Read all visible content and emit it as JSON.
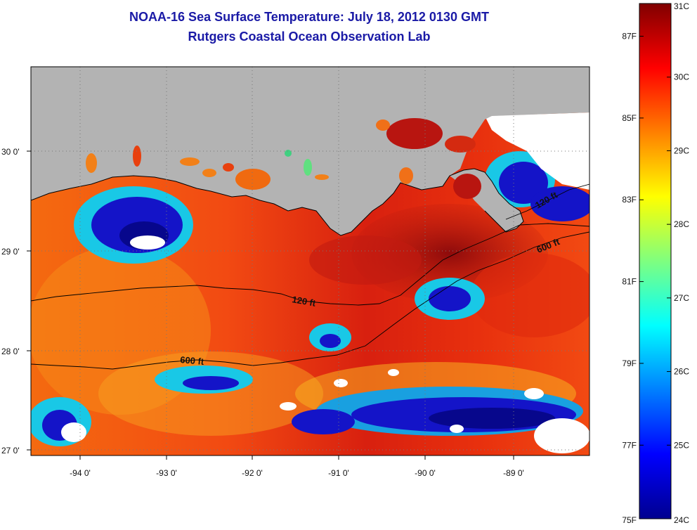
{
  "title": "NOAA-16 Sea Surface Temperature:  July 18, 2012 0130 GMT",
  "subtitle": "Rutgers Coastal Ocean Observation Lab",
  "map": {
    "lon_ticks": [
      "-94 0'",
      "-93 0'",
      "-92 0'",
      "-91 0'",
      "-90 0'",
      "-89 0'"
    ],
    "lat_ticks": [
      "30 0'",
      "29 0'",
      "28 0'",
      "27 0'"
    ],
    "contour_labels": [
      "120 ft",
      "600 ft",
      "600 ft",
      "120 ft"
    ],
    "land_color": "#b3b3b3",
    "cloud_color": "#ffffff"
  },
  "colorbar": {
    "celsius_labels": [
      "31C",
      "30C",
      "29C",
      "28C",
      "27C",
      "26C",
      "25C",
      "24C"
    ],
    "fahrenheit_labels": [
      "87F",
      "85F",
      "83F",
      "81F",
      "79F",
      "77F",
      "75F"
    ],
    "celsius_values": [
      31,
      30,
      29,
      28,
      27,
      26,
      25,
      24
    ],
    "fahrenheit_values": [
      87,
      85,
      83,
      81,
      79,
      77,
      75
    ],
    "range_c": [
      24,
      31
    ]
  }
}
